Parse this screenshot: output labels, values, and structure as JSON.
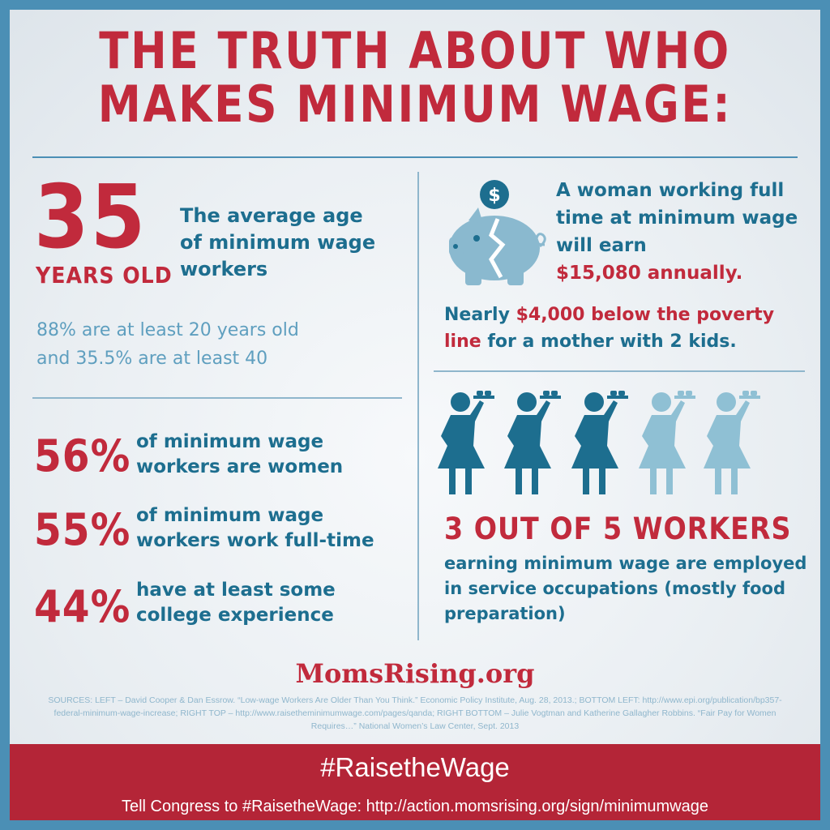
{
  "title": {
    "line1": "THE TRUTH ABOUT WHO",
    "line2": "MAKES MINIMUM WAGE:"
  },
  "age": {
    "number": "35",
    "unit": "YEARS OLD",
    "desc": "The average age of minimum wage workers",
    "stats_line1": "88% are at least 20 years old",
    "stats_line2": "and 35.5% are at least 40"
  },
  "stats": [
    {
      "value": "56%",
      "text": "of minimum wage workers are women"
    },
    {
      "value": "55%",
      "text": "of minimum wage workers work full-time"
    },
    {
      "value": "44%",
      "text": "have at least some college experience"
    }
  ],
  "earnings": {
    "icon": "piggy-bank-broken-icon",
    "text": "A woman working full time at minimum wage will earn",
    "amount": "$15,080 annually.",
    "poverty_blue": "Nearly ",
    "poverty_red": "$4,000 below the poverty line",
    "poverty_rest": " for a mother with 2 kids."
  },
  "workers": {
    "icon": "waitress-icon",
    "highlighted": 3,
    "total": 5,
    "headline": "3 OUT OF 5 WORKERS",
    "desc": "earning minimum wage are employed in service occupations (mostly food preparation)"
  },
  "logo": "MomsRising.org",
  "sources": "SOURCES:  LEFT – David Cooper & Dan Essrow. “Low-wage Workers Are Older Than You Think.” Economic Policy Institute, Aug. 28, 2013.; BOTTOM LEFT: http://www.epi.org/publication/bp357-federal-minimum-wage-increase; RIGHT TOP – http://www.raisetheminimumwage.com/pages/qanda; RIGHT BOTTOM – Julie Vogtman and Katherine Gallagher Robbins. “Fair Pay for Women Requires…” National Women’s Law Center, Sept. 2013",
  "banner": {
    "hashtag": "#RaisetheWage",
    "cta": "Tell Congress to #RaisetheWage: http://action.momsrising.org/sign/minimumwage"
  },
  "colors": {
    "red": "#c12a3c",
    "dark_blue": "#1d6e8f",
    "light_blue": "#5f9fbf",
    "faded_blue": "#8fc0d4",
    "border": "#4b8fb5"
  }
}
